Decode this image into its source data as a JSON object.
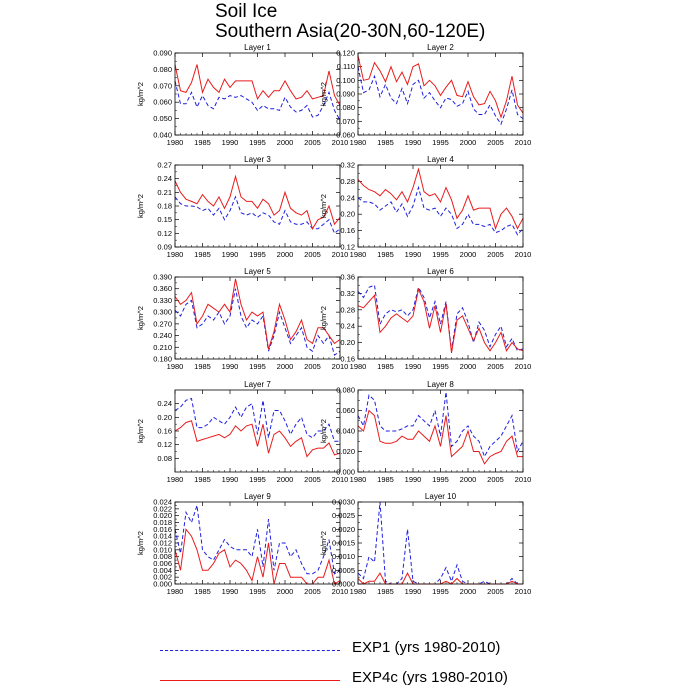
{
  "title_line1": "Soil Ice",
  "title_line2": "Southern Asia(20-30N,60-120E)",
  "colors": {
    "exp1": "#1f1fe0",
    "exp4c": "#e81c1c"
  },
  "legend": [
    {
      "label": "EXP1 (yrs 1980-2010)",
      "style": "dashed",
      "color": "#1f1fe0"
    },
    {
      "label": "EXP4c (yrs 1980-2010)",
      "style": "solid",
      "color": "#e81c1c"
    }
  ],
  "chart_data": [
    {
      "type": "line",
      "title": "Layer 1",
      "ylabel": "kg/m^2",
      "ylim": [
        0.04,
        0.09
      ],
      "yticks": [
        "0.040",
        "0.050",
        "0.060",
        "0.070",
        "0.080",
        "0.090"
      ],
      "xticks": [
        "1980",
        "1985",
        "1990",
        "1995",
        "2000",
        "2005",
        "2010"
      ],
      "xlim": [
        1980,
        2010
      ],
      "series": [
        {
          "name": "EXP1",
          "values": [
            0.073,
            0.059,
            0.059,
            0.066,
            0.057,
            0.064,
            0.058,
            0.056,
            0.063,
            0.062,
            0.064,
            0.063,
            0.064,
            0.062,
            0.06,
            0.055,
            0.058,
            0.056,
            0.056,
            0.055,
            0.063,
            0.057,
            0.054,
            0.055,
            0.058,
            0.051,
            0.052,
            0.058,
            0.066,
            0.055,
            0.049
          ]
        },
        {
          "name": "EXP4c",
          "values": [
            0.083,
            0.067,
            0.066,
            0.072,
            0.083,
            0.066,
            0.074,
            0.069,
            0.066,
            0.074,
            0.069,
            0.073,
            0.073,
            0.073,
            0.073,
            0.062,
            0.067,
            0.063,
            0.067,
            0.067,
            0.073,
            0.067,
            0.062,
            0.063,
            0.067,
            0.062,
            0.063,
            0.064,
            0.079,
            0.064,
            0.058
          ]
        }
      ]
    },
    {
      "type": "line",
      "title": "Layer 2",
      "ylabel": "kg/m^2",
      "ylim": [
        0.06,
        0.12
      ],
      "yticks": [
        "0.060",
        "0.070",
        "0.080",
        "0.090",
        "0.100",
        "0.110",
        "0.120"
      ],
      "xticks": [
        "1980",
        "1985",
        "1990",
        "1995",
        "2000",
        "2005",
        "2010"
      ],
      "xlim": [
        1980,
        2010
      ],
      "series": [
        {
          "name": "EXP1",
          "values": [
            0.11,
            0.091,
            0.093,
            0.103,
            0.088,
            0.097,
            0.087,
            0.083,
            0.094,
            0.083,
            0.097,
            0.1,
            0.087,
            0.091,
            0.085,
            0.08,
            0.087,
            0.086,
            0.081,
            0.083,
            0.092,
            0.079,
            0.075,
            0.075,
            0.082,
            0.074,
            0.068,
            0.079,
            0.093,
            0.075,
            0.072
          ]
        },
        {
          "name": "EXP4c",
          "values": [
            0.118,
            0.1,
            0.101,
            0.113,
            0.107,
            0.099,
            0.11,
            0.099,
            0.106,
            0.097,
            0.11,
            0.112,
            0.096,
            0.1,
            0.096,
            0.089,
            0.095,
            0.1,
            0.089,
            0.088,
            0.099,
            0.088,
            0.082,
            0.083,
            0.092,
            0.085,
            0.073,
            0.085,
            0.103,
            0.082,
            0.076
          ]
        }
      ]
    },
    {
      "type": "line",
      "title": "Layer 3",
      "ylabel": "kg/m^2",
      "ylim": [
        0.09,
        0.27
      ],
      "yticks": [
        "0.09",
        "0.12",
        "0.15",
        "0.18",
        "0.21",
        "0.24",
        "0.27"
      ],
      "xticks": [
        "1980",
        "1985",
        "1990",
        "1995",
        "2000",
        "2005",
        "2010"
      ],
      "xlim": [
        1980,
        2010
      ],
      "series": [
        {
          "name": "EXP1",
          "values": [
            0.2,
            0.185,
            0.18,
            0.18,
            0.178,
            0.17,
            0.175,
            0.16,
            0.175,
            0.15,
            0.17,
            0.2,
            0.165,
            0.16,
            0.165,
            0.155,
            0.165,
            0.16,
            0.145,
            0.14,
            0.17,
            0.145,
            0.14,
            0.14,
            0.145,
            0.13,
            0.13,
            0.14,
            0.15,
            0.12,
            0.13
          ]
        },
        {
          "name": "EXP4c",
          "values": [
            0.235,
            0.21,
            0.195,
            0.19,
            0.185,
            0.205,
            0.19,
            0.18,
            0.2,
            0.175,
            0.2,
            0.245,
            0.2,
            0.19,
            0.19,
            0.175,
            0.195,
            0.185,
            0.16,
            0.17,
            0.21,
            0.175,
            0.165,
            0.16,
            0.17,
            0.13,
            0.15,
            0.155,
            0.18,
            0.14,
            0.155
          ]
        }
      ]
    },
    {
      "type": "line",
      "title": "Layer 4",
      "ylabel": "kg/m^2",
      "ylim": [
        0.12,
        0.32
      ],
      "yticks": [
        "0.12",
        "0.16",
        "0.20",
        "0.24",
        "0.28",
        "0.32"
      ],
      "xticks": [
        "1980",
        "1985",
        "1990",
        "1995",
        "2000",
        "2005",
        "2010"
      ],
      "xlim": [
        1980,
        2010
      ],
      "series": [
        {
          "name": "EXP1",
          "values": [
            0.24,
            0.23,
            0.23,
            0.225,
            0.21,
            0.22,
            0.23,
            0.205,
            0.225,
            0.195,
            0.22,
            0.265,
            0.215,
            0.21,
            0.215,
            0.195,
            0.215,
            0.2,
            0.165,
            0.175,
            0.2,
            0.175,
            0.175,
            0.17,
            0.175,
            0.155,
            0.16,
            0.17,
            0.175,
            0.15,
            0.165
          ]
        },
        {
          "name": "EXP4c",
          "values": [
            0.285,
            0.27,
            0.26,
            0.255,
            0.245,
            0.26,
            0.25,
            0.235,
            0.255,
            0.23,
            0.265,
            0.31,
            0.255,
            0.245,
            0.25,
            0.23,
            0.265,
            0.235,
            0.19,
            0.21,
            0.245,
            0.21,
            0.215,
            0.215,
            0.215,
            0.165,
            0.2,
            0.215,
            0.195,
            0.165,
            0.19
          ]
        }
      ]
    },
    {
      "type": "line",
      "title": "Layer 5",
      "ylabel": "kg/m^2",
      "ylim": [
        0.18,
        0.39
      ],
      "yticks": [
        "0.180",
        "0.210",
        "0.240",
        "0.270",
        "0.300",
        "0.330",
        "0.360",
        "0.390"
      ],
      "xticks": [
        "1980",
        "1985",
        "1990",
        "1995",
        "2000",
        "2005",
        "2010"
      ],
      "xlim": [
        1980,
        2010
      ],
      "series": [
        {
          "name": "EXP1",
          "values": [
            0.305,
            0.29,
            0.32,
            0.33,
            0.26,
            0.27,
            0.29,
            0.28,
            0.3,
            0.27,
            0.29,
            0.36,
            0.29,
            0.26,
            0.28,
            0.27,
            0.29,
            0.2,
            0.24,
            0.3,
            0.26,
            0.22,
            0.24,
            0.26,
            0.21,
            0.2,
            0.24,
            0.22,
            0.24,
            0.19,
            0.2
          ]
        },
        {
          "name": "EXP4c",
          "values": [
            0.34,
            0.32,
            0.33,
            0.35,
            0.27,
            0.29,
            0.32,
            0.31,
            0.3,
            0.32,
            0.3,
            0.385,
            0.32,
            0.28,
            0.3,
            0.29,
            0.3,
            0.205,
            0.25,
            0.32,
            0.28,
            0.23,
            0.25,
            0.28,
            0.23,
            0.22,
            0.26,
            0.26,
            0.24,
            0.22,
            0.23
          ]
        }
      ]
    },
    {
      "type": "line",
      "title": "Layer 6",
      "ylabel": "kg/m^2",
      "ylim": [
        0.16,
        0.36
      ],
      "yticks": [
        "0.16",
        "0.20",
        "0.24",
        "0.28",
        "0.32",
        "0.36"
      ],
      "xticks": [
        "1980",
        "1985",
        "1990",
        "1995",
        "2000",
        "2005",
        "2010"
      ],
      "xlim": [
        1980,
        2010
      ],
      "series": [
        {
          "name": "EXP1",
          "values": [
            0.325,
            0.31,
            0.335,
            0.34,
            0.245,
            0.27,
            0.28,
            0.275,
            0.28,
            0.265,
            0.28,
            0.335,
            0.31,
            0.26,
            0.3,
            0.245,
            0.3,
            0.18,
            0.27,
            0.285,
            0.25,
            0.2,
            0.25,
            0.23,
            0.19,
            0.22,
            0.24,
            0.19,
            0.21,
            0.18,
            0.185
          ]
        },
        {
          "name": "EXP4c",
          "values": [
            0.29,
            0.285,
            0.3,
            0.315,
            0.225,
            0.24,
            0.26,
            0.27,
            0.26,
            0.25,
            0.265,
            0.33,
            0.3,
            0.235,
            0.29,
            0.225,
            0.295,
            0.175,
            0.255,
            0.265,
            0.235,
            0.205,
            0.235,
            0.2,
            0.18,
            0.2,
            0.225,
            0.18,
            0.2,
            0.185,
            0.18
          ]
        }
      ]
    },
    {
      "type": "line",
      "title": "Layer 7",
      "ylabel": "kg/m^2",
      "ylim": [
        0.04,
        0.28
      ],
      "yticks": [
        "0.08",
        "0.12",
        "0.16",
        "0.20",
        "0.24"
      ],
      "xticks": [
        "1980",
        "1985",
        "1990",
        "1995",
        "2000",
        "2005",
        "2010"
      ],
      "xlim": [
        1980,
        2010
      ],
      "series": [
        {
          "name": "EXP1",
          "values": [
            0.22,
            0.23,
            0.25,
            0.255,
            0.17,
            0.17,
            0.18,
            0.2,
            0.19,
            0.18,
            0.2,
            0.23,
            0.2,
            0.23,
            0.24,
            0.15,
            0.25,
            0.14,
            0.22,
            0.22,
            0.19,
            0.15,
            0.18,
            0.2,
            0.15,
            0.14,
            0.16,
            0.16,
            0.18,
            0.13,
            0.13
          ]
        },
        {
          "name": "EXP4c",
          "values": [
            0.16,
            0.17,
            0.185,
            0.19,
            0.13,
            0.135,
            0.14,
            0.145,
            0.15,
            0.14,
            0.15,
            0.175,
            0.16,
            0.175,
            0.18,
            0.115,
            0.18,
            0.095,
            0.15,
            0.16,
            0.14,
            0.115,
            0.13,
            0.14,
            0.085,
            0.105,
            0.11,
            0.11,
            0.125,
            0.09,
            0.095
          ]
        }
      ]
    },
    {
      "type": "line",
      "title": "Layer 8",
      "ylabel": "kg/m^2",
      "ylim": [
        0.0,
        0.08
      ],
      "yticks": [
        "0.000",
        "0.020",
        "0.040",
        "0.060",
        "0.080"
      ],
      "xticks": [
        "1980",
        "1985",
        "1990",
        "1995",
        "2000",
        "2005",
        "2010"
      ],
      "xlim": [
        1980,
        2010
      ],
      "series": [
        {
          "name": "EXP1",
          "values": [
            0.055,
            0.045,
            0.075,
            0.07,
            0.045,
            0.04,
            0.04,
            0.04,
            0.042,
            0.045,
            0.045,
            0.055,
            0.05,
            0.045,
            0.06,
            0.035,
            0.078,
            0.025,
            0.03,
            0.04,
            0.045,
            0.035,
            0.03,
            0.015,
            0.025,
            0.03,
            0.035,
            0.045,
            0.055,
            0.02,
            0.03
          ]
        },
        {
          "name": "EXP4c",
          "values": [
            0.045,
            0.04,
            0.06,
            0.055,
            0.03,
            0.028,
            0.028,
            0.03,
            0.035,
            0.032,
            0.032,
            0.04,
            0.035,
            0.03,
            0.045,
            0.025,
            0.055,
            0.015,
            0.02,
            0.025,
            0.04,
            0.02,
            0.02,
            0.008,
            0.015,
            0.018,
            0.02,
            0.03,
            0.035,
            0.015,
            0.015
          ]
        }
      ]
    },
    {
      "type": "line",
      "title": "Layer 9",
      "ylabel": "kg/m^2",
      "ylim": [
        0.0,
        0.024
      ],
      "yticks": [
        "0.000",
        "0.002",
        "0.004",
        "0.006",
        "0.008",
        "0.010",
        "0.012",
        "0.014",
        "0.016",
        "0.018",
        "0.020",
        "0.022",
        "0.024"
      ],
      "xticks": [
        "1980",
        "1985",
        "1990",
        "1995",
        "2000",
        "2005",
        "2010"
      ],
      "xlim": [
        1980,
        2010
      ],
      "series": [
        {
          "name": "EXP1",
          "values": [
            0.016,
            0.009,
            0.021,
            0.018,
            0.023,
            0.01,
            0.008,
            0.007,
            0.01,
            0.013,
            0.011,
            0.01,
            0.01,
            0.01,
            0.008,
            0.016,
            0.005,
            0.019,
            0.004,
            0.012,
            0.012,
            0.008,
            0.01,
            0.006,
            0.003,
            0.003,
            0.004,
            0.008,
            0.013,
            0.003,
            0.004
          ]
        },
        {
          "name": "EXP4c",
          "values": [
            0.01,
            0.004,
            0.016,
            0.014,
            0.01,
            0.004,
            0.004,
            0.006,
            0.009,
            0.01,
            0.005,
            0.007,
            0.006,
            0.004,
            0.001,
            0.008,
            0.002,
            0.012,
            0.0,
            0.006,
            0.006,
            0.002,
            0.002,
            0.002,
            0.0,
            0.0,
            0.002,
            0.002,
            0.007,
            0.0,
            0.001
          ]
        }
      ]
    },
    {
      "type": "line",
      "title": "Layer 10",
      "ylabel": "kg/m^2",
      "ylim": [
        0.0,
        0.003
      ],
      "yticks": [
        "0.0000",
        "0.0005",
        "0.0010",
        "0.0015",
        "0.0020",
        "0.0025",
        "0.0030"
      ],
      "xticks": [
        "1980",
        "1985",
        "1990",
        "1995",
        "2000",
        "2005",
        "2010"
      ],
      "xlim": [
        1980,
        2010
      ],
      "series": [
        {
          "name": "EXP1",
          "values": [
            0.0004,
            0.0002,
            0.001,
            0.0008,
            0.003,
            0.0001,
            0.0,
            0.0,
            0.0002,
            0.002,
            0.0001,
            0.0,
            0.0,
            0.0,
            0.0,
            0.0002,
            0.0006,
            0.0001,
            0.0007,
            0.0001,
            0.0,
            0.0,
            0.0,
            0.0001,
            0.0,
            0.0,
            0.0,
            0.0,
            0.0002,
            0.0,
            0.0
          ]
        },
        {
          "name": "EXP4c",
          "values": [
            0.0002,
            0.0,
            0.0001,
            0.0001,
            0.0004,
            0.0,
            0.0,
            0.0,
            0.0,
            0.0004,
            0.0,
            0.0,
            0.0,
            0.0,
            0.0,
            0.0,
            0.0001,
            0.0,
            0.0002,
            0.0,
            0.0,
            0.0,
            0.0,
            0.0,
            0.0,
            0.0,
            0.0,
            0.0,
            0.0001,
            0.0,
            0.0
          ]
        }
      ]
    }
  ]
}
